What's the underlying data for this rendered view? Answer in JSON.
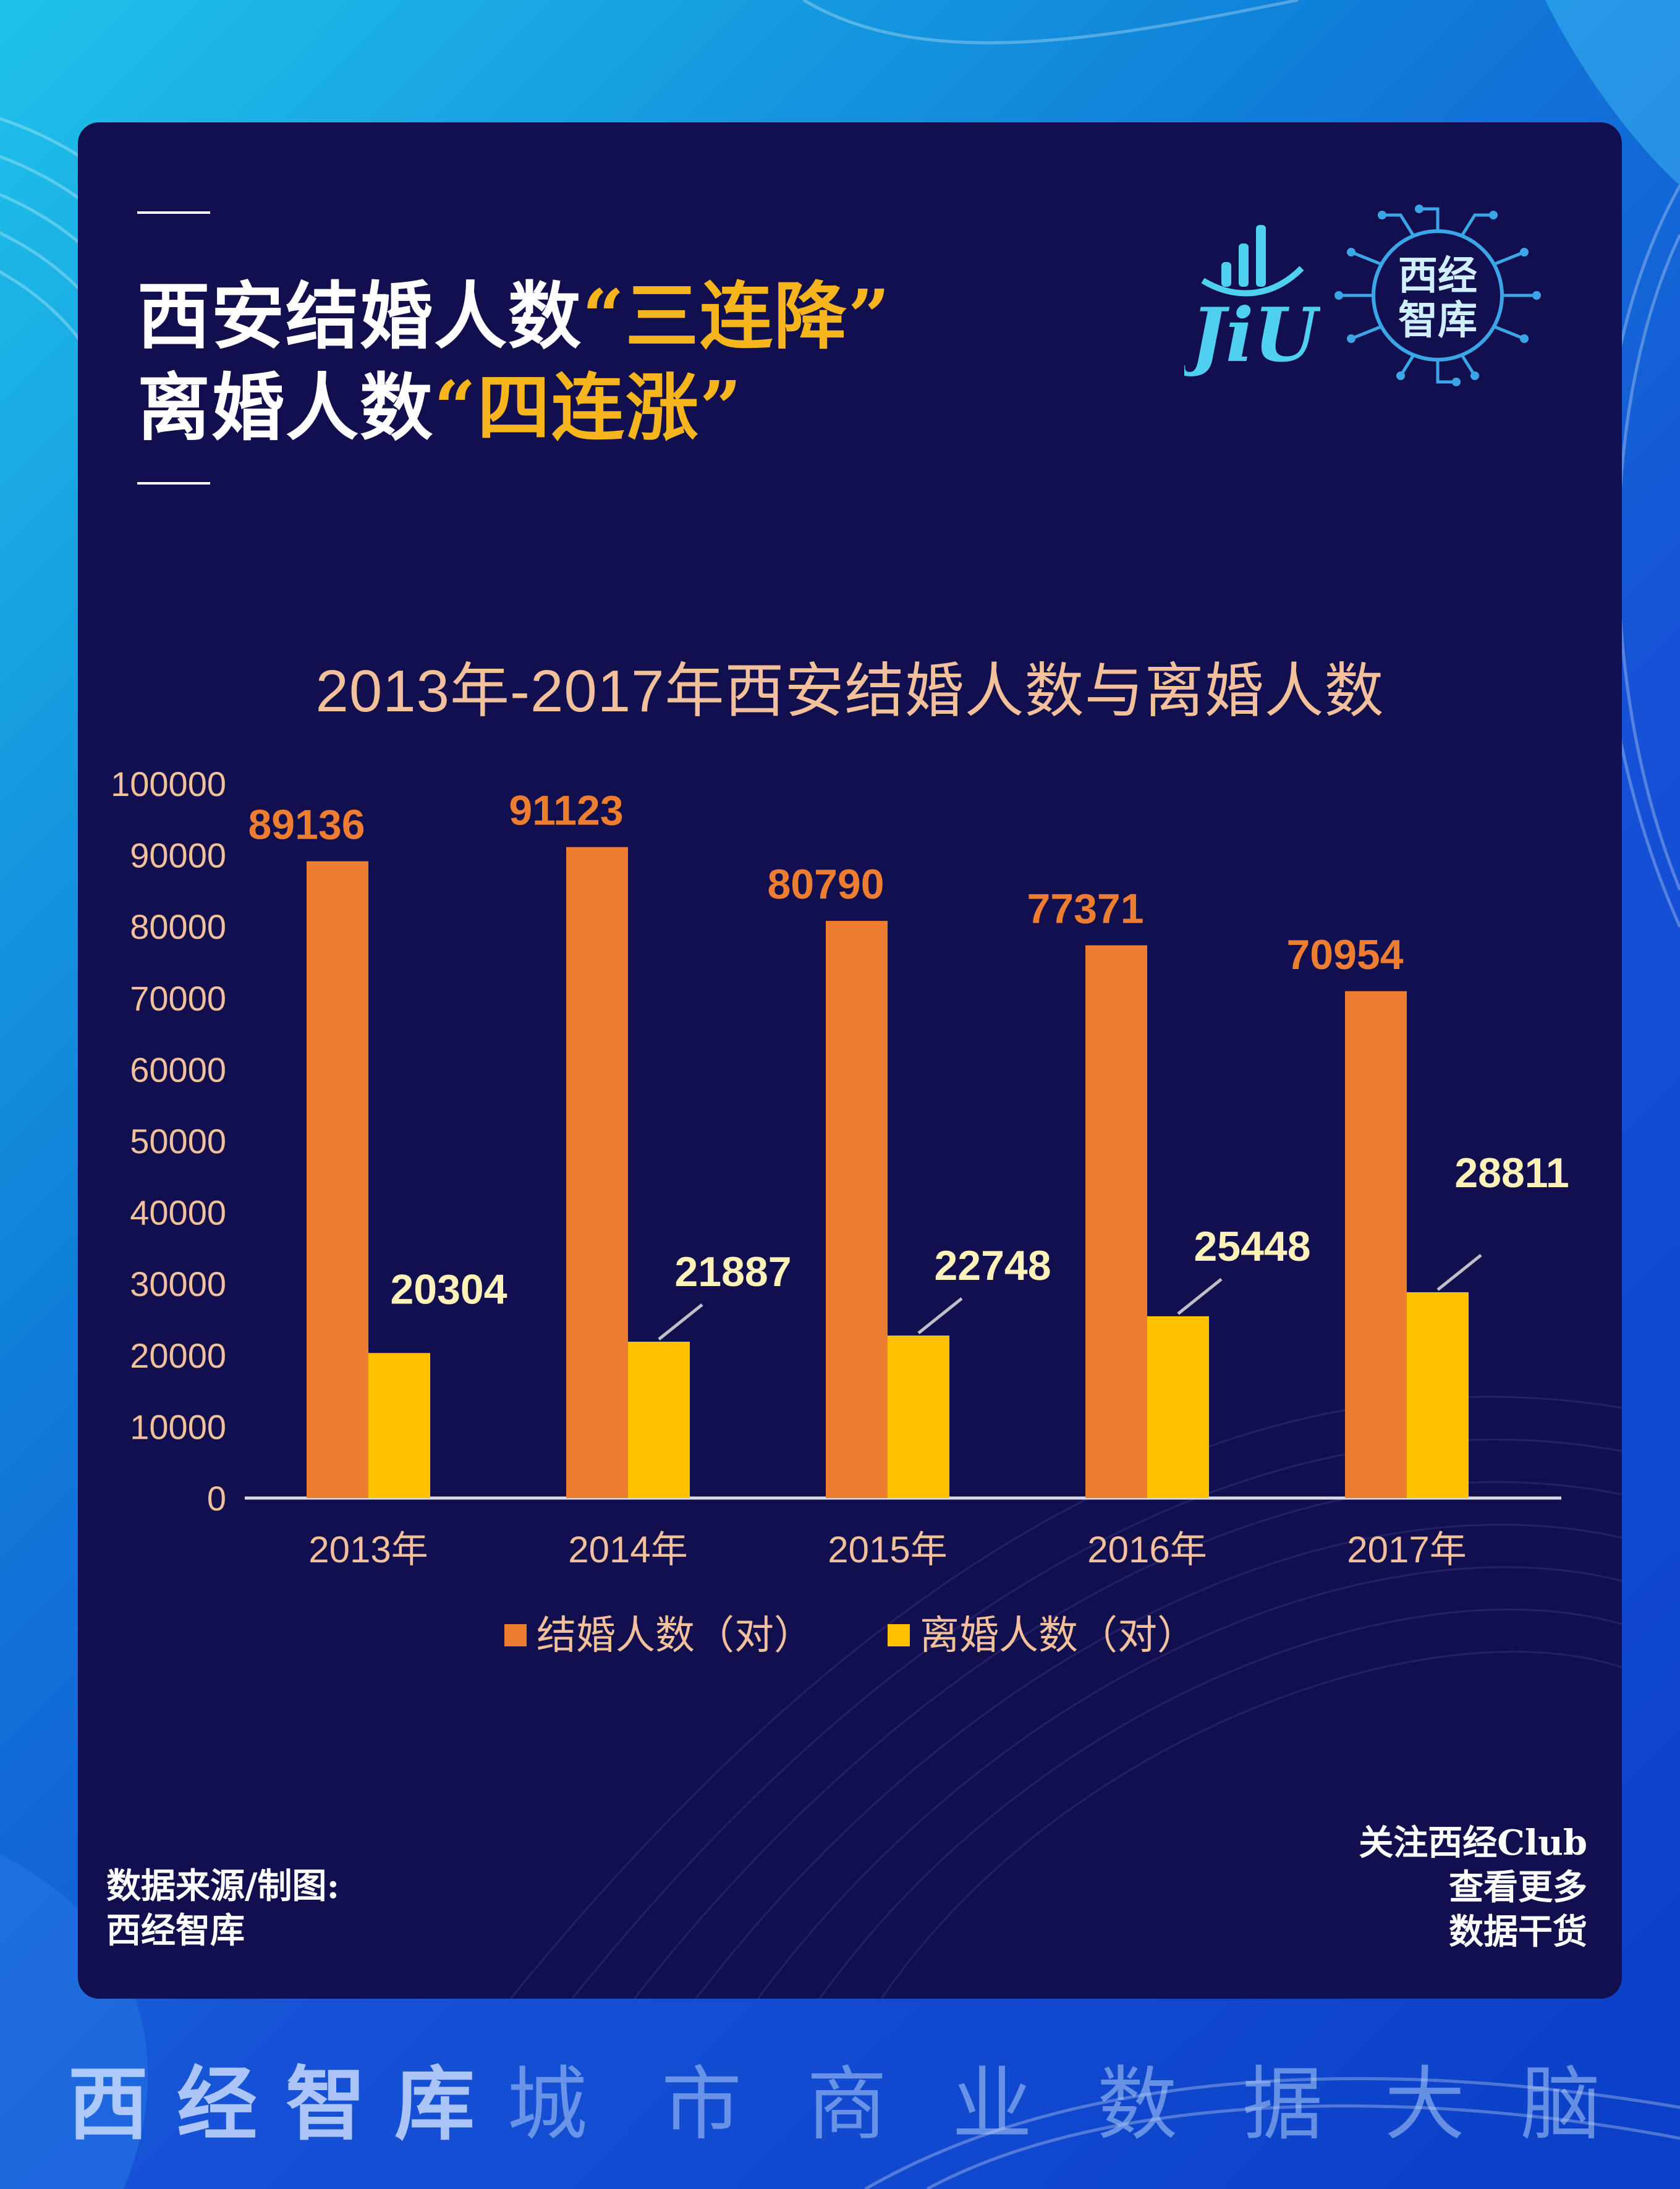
{
  "header": {
    "line1_prefix": "西安结婚人数",
    "line1_quote_open": "“",
    "line1_highlight": "三连降",
    "line1_quote_close": "”",
    "line2_prefix": "离婚人数",
    "line2_quote_open": "“",
    "line2_highlight": "四连涨",
    "line2_quote_close": "”"
  },
  "logos": {
    "jiu_text": "JiU",
    "brand_text_line1": "西经",
    "brand_text_line2": "智库"
  },
  "colors": {
    "card_bg": "#120f4e",
    "marriage": "#ed7d31",
    "divorce": "#ffc000",
    "highlight": "#f6b51c",
    "axis_text": "#f2c09a"
  },
  "chart_data": {
    "type": "bar",
    "title": "2013年-2017年西安结婚人数与离婚人数",
    "categories": [
      "2013年",
      "2014年",
      "2015年",
      "2016年",
      "2017年"
    ],
    "series": [
      {
        "name": "结婚人数（对）",
        "values": [
          89136,
          91123,
          80790,
          77371,
          70954
        ]
      },
      {
        "name": "离婚人数（对）",
        "values": [
          20304,
          21887,
          22748,
          25448,
          28811
        ]
      }
    ],
    "ylim": [
      0,
      100000
    ],
    "yticks": [
      "0",
      "10000",
      "20000",
      "30000",
      "40000",
      "50000",
      "60000",
      "70000",
      "80000",
      "90000",
      "100000"
    ],
    "grid": false,
    "legend": "bottom"
  },
  "footer_card": {
    "source_line1": "数据来源/制图:",
    "source_line2": "西经智库",
    "follow_line1": "关注西经Club",
    "follow_line2": "查看更多",
    "follow_line3": "数据干货"
  },
  "footer": {
    "brand": [
      "西",
      "经",
      "智",
      "库"
    ],
    "slogan": [
      "城",
      "市",
      "商",
      "业",
      "数",
      "据",
      "大",
      "脑"
    ]
  }
}
